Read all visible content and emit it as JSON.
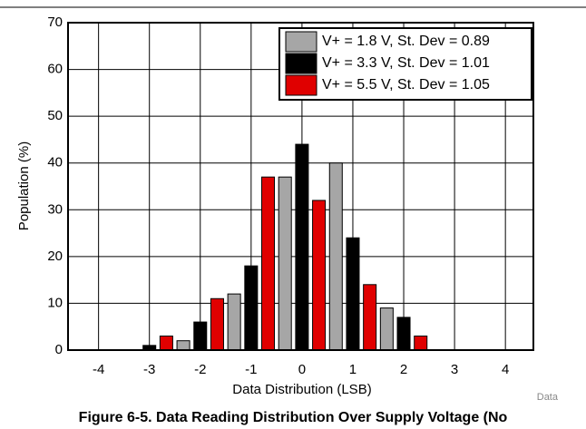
{
  "chart_data": {
    "type": "bar",
    "title": "Figure 6-5. Data Reading Distribution Over Supply Voltage (No",
    "xlabel": "Data Distribution (LSB)",
    "ylabel": "Population (%)",
    "source": "Data",
    "x": [
      -4,
      -3,
      -2,
      -1,
      0,
      1,
      2,
      3,
      4
    ],
    "series": [
      {
        "name": "V+ = 1.8 V, St. Dev = 0.89",
        "color": "#a6a6a6",
        "values": [
          0,
          0,
          2,
          12,
          37,
          40,
          9,
          0,
          0
        ]
      },
      {
        "name": "V+ = 3.3 V, St. Dev = 1.01",
        "color": "#000000",
        "values": [
          0,
          1,
          6,
          18,
          44,
          24,
          7,
          0,
          0
        ]
      },
      {
        "name": "V+ = 5.5 V, St. Dev = 1.05",
        "color": "#e00000",
        "values": [
          0,
          3,
          11,
          37,
          32,
          14,
          3,
          0,
          0
        ]
      }
    ],
    "xlim": [
      -4.6,
      4.55
    ],
    "xticks": [
      -4,
      -3,
      -2,
      -1,
      0,
      1,
      2,
      3,
      4
    ],
    "ylim": [
      0,
      70
    ],
    "yticks": [
      0,
      10,
      20,
      30,
      40,
      50,
      60,
      70
    ],
    "grid": true,
    "legend": "upper right"
  }
}
